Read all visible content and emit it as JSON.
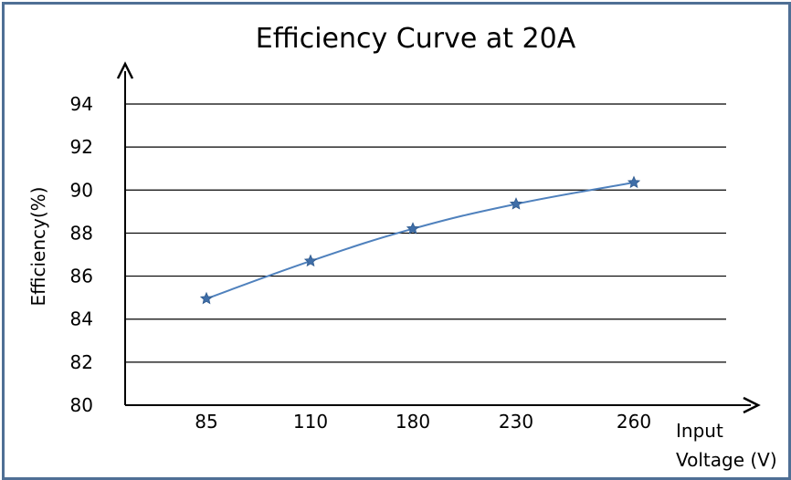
{
  "chart_data": {
    "type": "line",
    "title": "Efficiency Curve at 20A",
    "ylabel": "Efficiency(%)",
    "xlabel_line1": "Input",
    "xlabel_line2": "Voltage (V)",
    "categories": [
      "85",
      "110",
      "180",
      "230",
      "260"
    ],
    "series": [
      {
        "values": [
          84.95,
          86.7,
          88.2,
          89.35,
          90.35
        ],
        "color": "#4f81bd",
        "marker": "star"
      }
    ],
    "ylim": [
      80,
      94
    ],
    "yticks": [
      80,
      82,
      84,
      86,
      88,
      90,
      92,
      94
    ],
    "grid": true,
    "legend": "none"
  }
}
